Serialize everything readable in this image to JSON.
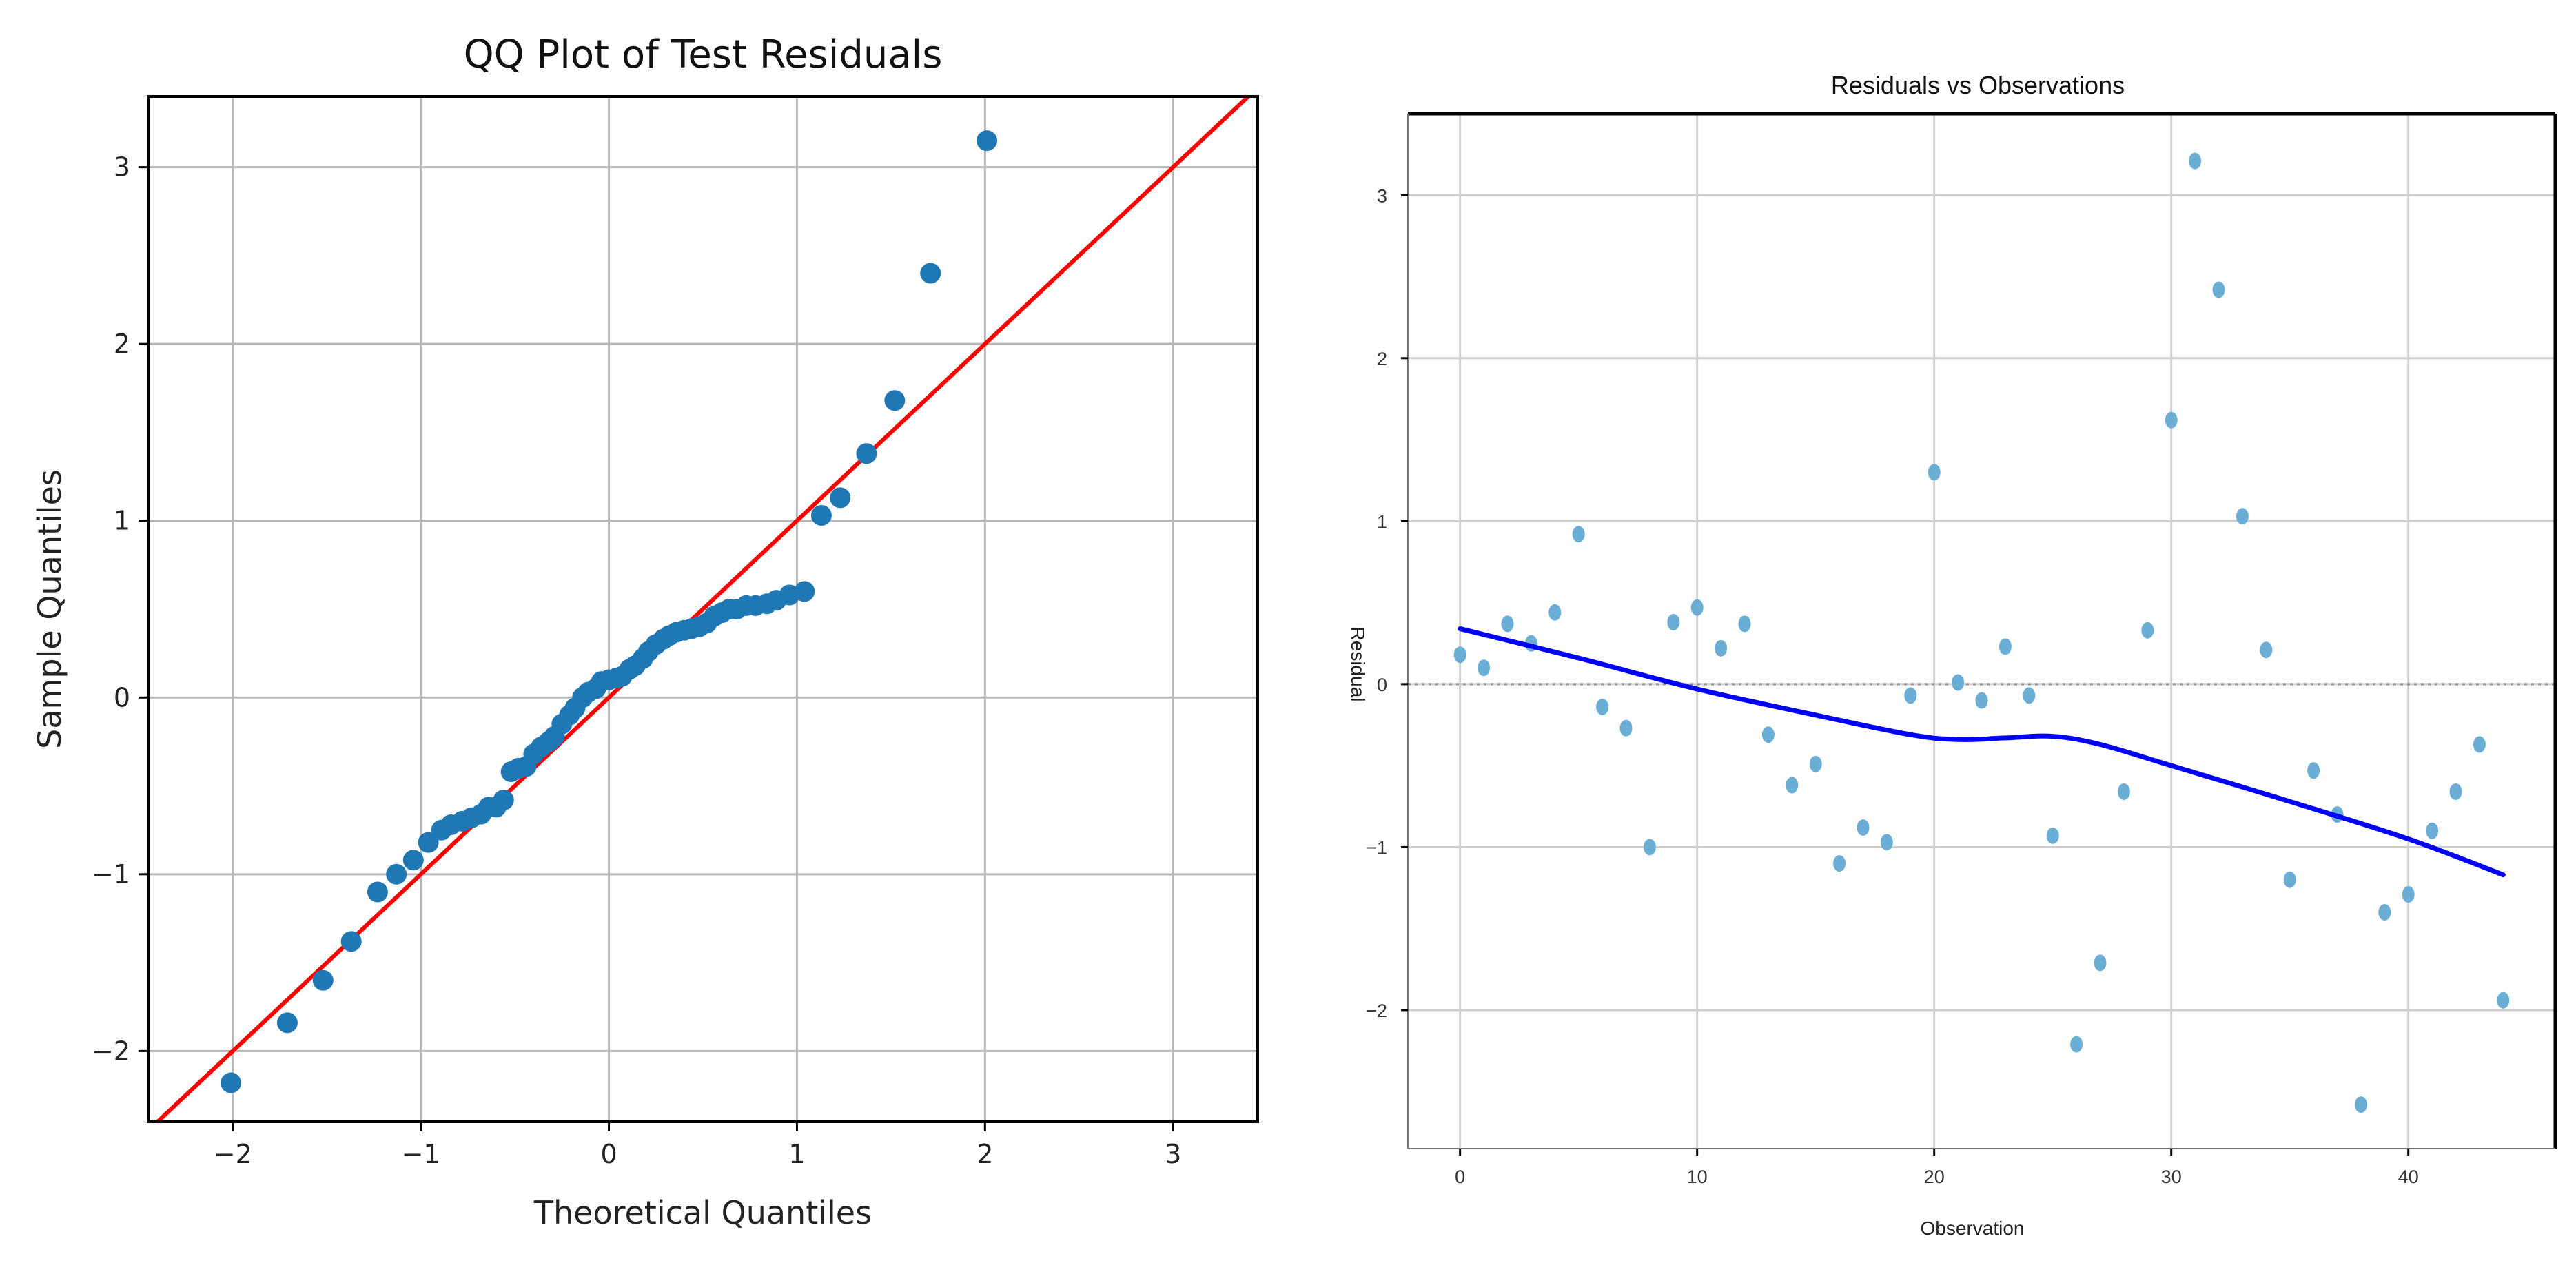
{
  "chart_data": [
    {
      "type": "scatter",
      "title": "QQ Plot of Test Residuals",
      "xlabel": "Theoretical Quantiles",
      "ylabel": "Sample Quantiles",
      "xlim": [
        -2.45,
        3.45
      ],
      "ylim": [
        -2.4,
        3.4
      ],
      "xticks": [
        "−2",
        "−1",
        "0",
        "1",
        "2",
        "3"
      ],
      "xtick_values": [
        -2,
        -1,
        0,
        1,
        2,
        3
      ],
      "yticks": [
        "−2",
        "−1",
        "0",
        "1",
        "2",
        "3"
      ],
      "ytick_values": [
        -2,
        -1,
        0,
        1,
        2,
        3
      ],
      "grid": true,
      "point_color": "#1f77b4",
      "line_color": "#ff0000",
      "reference_line": {
        "slope": 1,
        "intercept": 0
      },
      "series": [
        {
          "name": "residuals",
          "x": [
            -2.01,
            -1.71,
            -1.52,
            -1.37,
            -1.23,
            -1.13,
            -1.04,
            -0.96,
            -0.89,
            -0.84,
            -0.78,
            -0.73,
            -0.68,
            -0.64,
            -0.6,
            -0.56,
            -0.52,
            -0.48,
            -0.44,
            -0.4,
            -0.36,
            -0.32,
            -0.29,
            -0.25,
            -0.21,
            -0.18,
            -0.14,
            -0.11,
            -0.07,
            -0.04,
            0.0,
            0.04,
            0.07,
            0.11,
            0.14,
            0.18,
            0.21,
            0.25,
            0.29,
            0.32,
            0.36,
            0.4,
            0.44,
            0.48,
            0.52,
            0.56,
            0.6,
            0.64,
            0.68,
            0.73,
            0.78,
            0.84,
            0.89,
            0.96,
            1.04,
            1.13,
            1.23,
            1.37,
            1.52,
            1.71,
            2.01
          ],
          "y": [
            -2.18,
            -1.84,
            -1.6,
            -1.38,
            -1.1,
            -1.0,
            -0.92,
            -0.82,
            -0.75,
            -0.72,
            -0.7,
            -0.68,
            -0.66,
            -0.62,
            -0.62,
            -0.58,
            -0.42,
            -0.4,
            -0.39,
            -0.32,
            -0.28,
            -0.25,
            -0.22,
            -0.15,
            -0.1,
            -0.06,
            0.0,
            0.03,
            0.05,
            0.09,
            0.1,
            0.11,
            0.12,
            0.16,
            0.18,
            0.22,
            0.26,
            0.3,
            0.33,
            0.35,
            0.37,
            0.38,
            0.39,
            0.4,
            0.42,
            0.46,
            0.48,
            0.5,
            0.5,
            0.52,
            0.52,
            0.53,
            0.55,
            0.58,
            0.6,
            1.03,
            1.13,
            1.38,
            1.68,
            2.4,
            3.15
          ]
        }
      ]
    },
    {
      "type": "scatter",
      "title": "Residuals vs Observations",
      "xlabel": "Observation",
      "ylabel": "Residual",
      "xlim": [
        -2.2,
        46.2
      ],
      "ylim": [
        -2.85,
        3.5
      ],
      "xticks": [
        "0",
        "10",
        "20",
        "30",
        "40"
      ],
      "xtick_values": [
        0,
        10,
        20,
        30,
        40
      ],
      "yticks": [
        "−2",
        "−1",
        "0",
        "1",
        "2",
        "3"
      ],
      "ytick_values": [
        -2,
        -1,
        0,
        1,
        2,
        3
      ],
      "grid": true,
      "zero_line": true,
      "point_color": "#6aaed6",
      "trend_color": "#0000ff",
      "series": [
        {
          "name": "residuals",
          "x": [
            0,
            1,
            2,
            3,
            4,
            5,
            6,
            7,
            8,
            9,
            10,
            11,
            12,
            13,
            14,
            15,
            16,
            17,
            18,
            19,
            20,
            21,
            22,
            23,
            24,
            25,
            26,
            27,
            28,
            29,
            30,
            31,
            32,
            33,
            34,
            35,
            36,
            37,
            38,
            39,
            40,
            41,
            42,
            43,
            44
          ],
          "y": [
            0.18,
            0.1,
            0.37,
            0.25,
            0.44,
            0.92,
            -0.14,
            -0.27,
            -1.0,
            0.38,
            0.47,
            0.22,
            0.37,
            -0.31,
            -0.62,
            -0.49,
            -1.1,
            -0.88,
            -0.97,
            -0.07,
            1.3,
            0.01,
            -0.1,
            0.23,
            -0.07,
            -0.93,
            -2.21,
            -1.71,
            -0.66,
            0.33,
            1.62,
            3.21,
            2.42,
            1.03,
            0.21,
            -1.2,
            -0.53,
            -0.8,
            -2.58,
            -1.4,
            -1.29,
            -0.9,
            -0.66,
            -0.37,
            -1.94
          ]
        },
        {
          "name": "trend",
          "x": [
            0,
            5,
            10,
            15,
            19,
            21,
            23,
            25,
            27,
            30,
            35,
            40,
            44
          ],
          "y": [
            0.34,
            0.16,
            -0.03,
            -0.19,
            -0.31,
            -0.34,
            -0.33,
            -0.32,
            -0.37,
            -0.5,
            -0.72,
            -0.95,
            -1.17
          ]
        }
      ]
    }
  ]
}
